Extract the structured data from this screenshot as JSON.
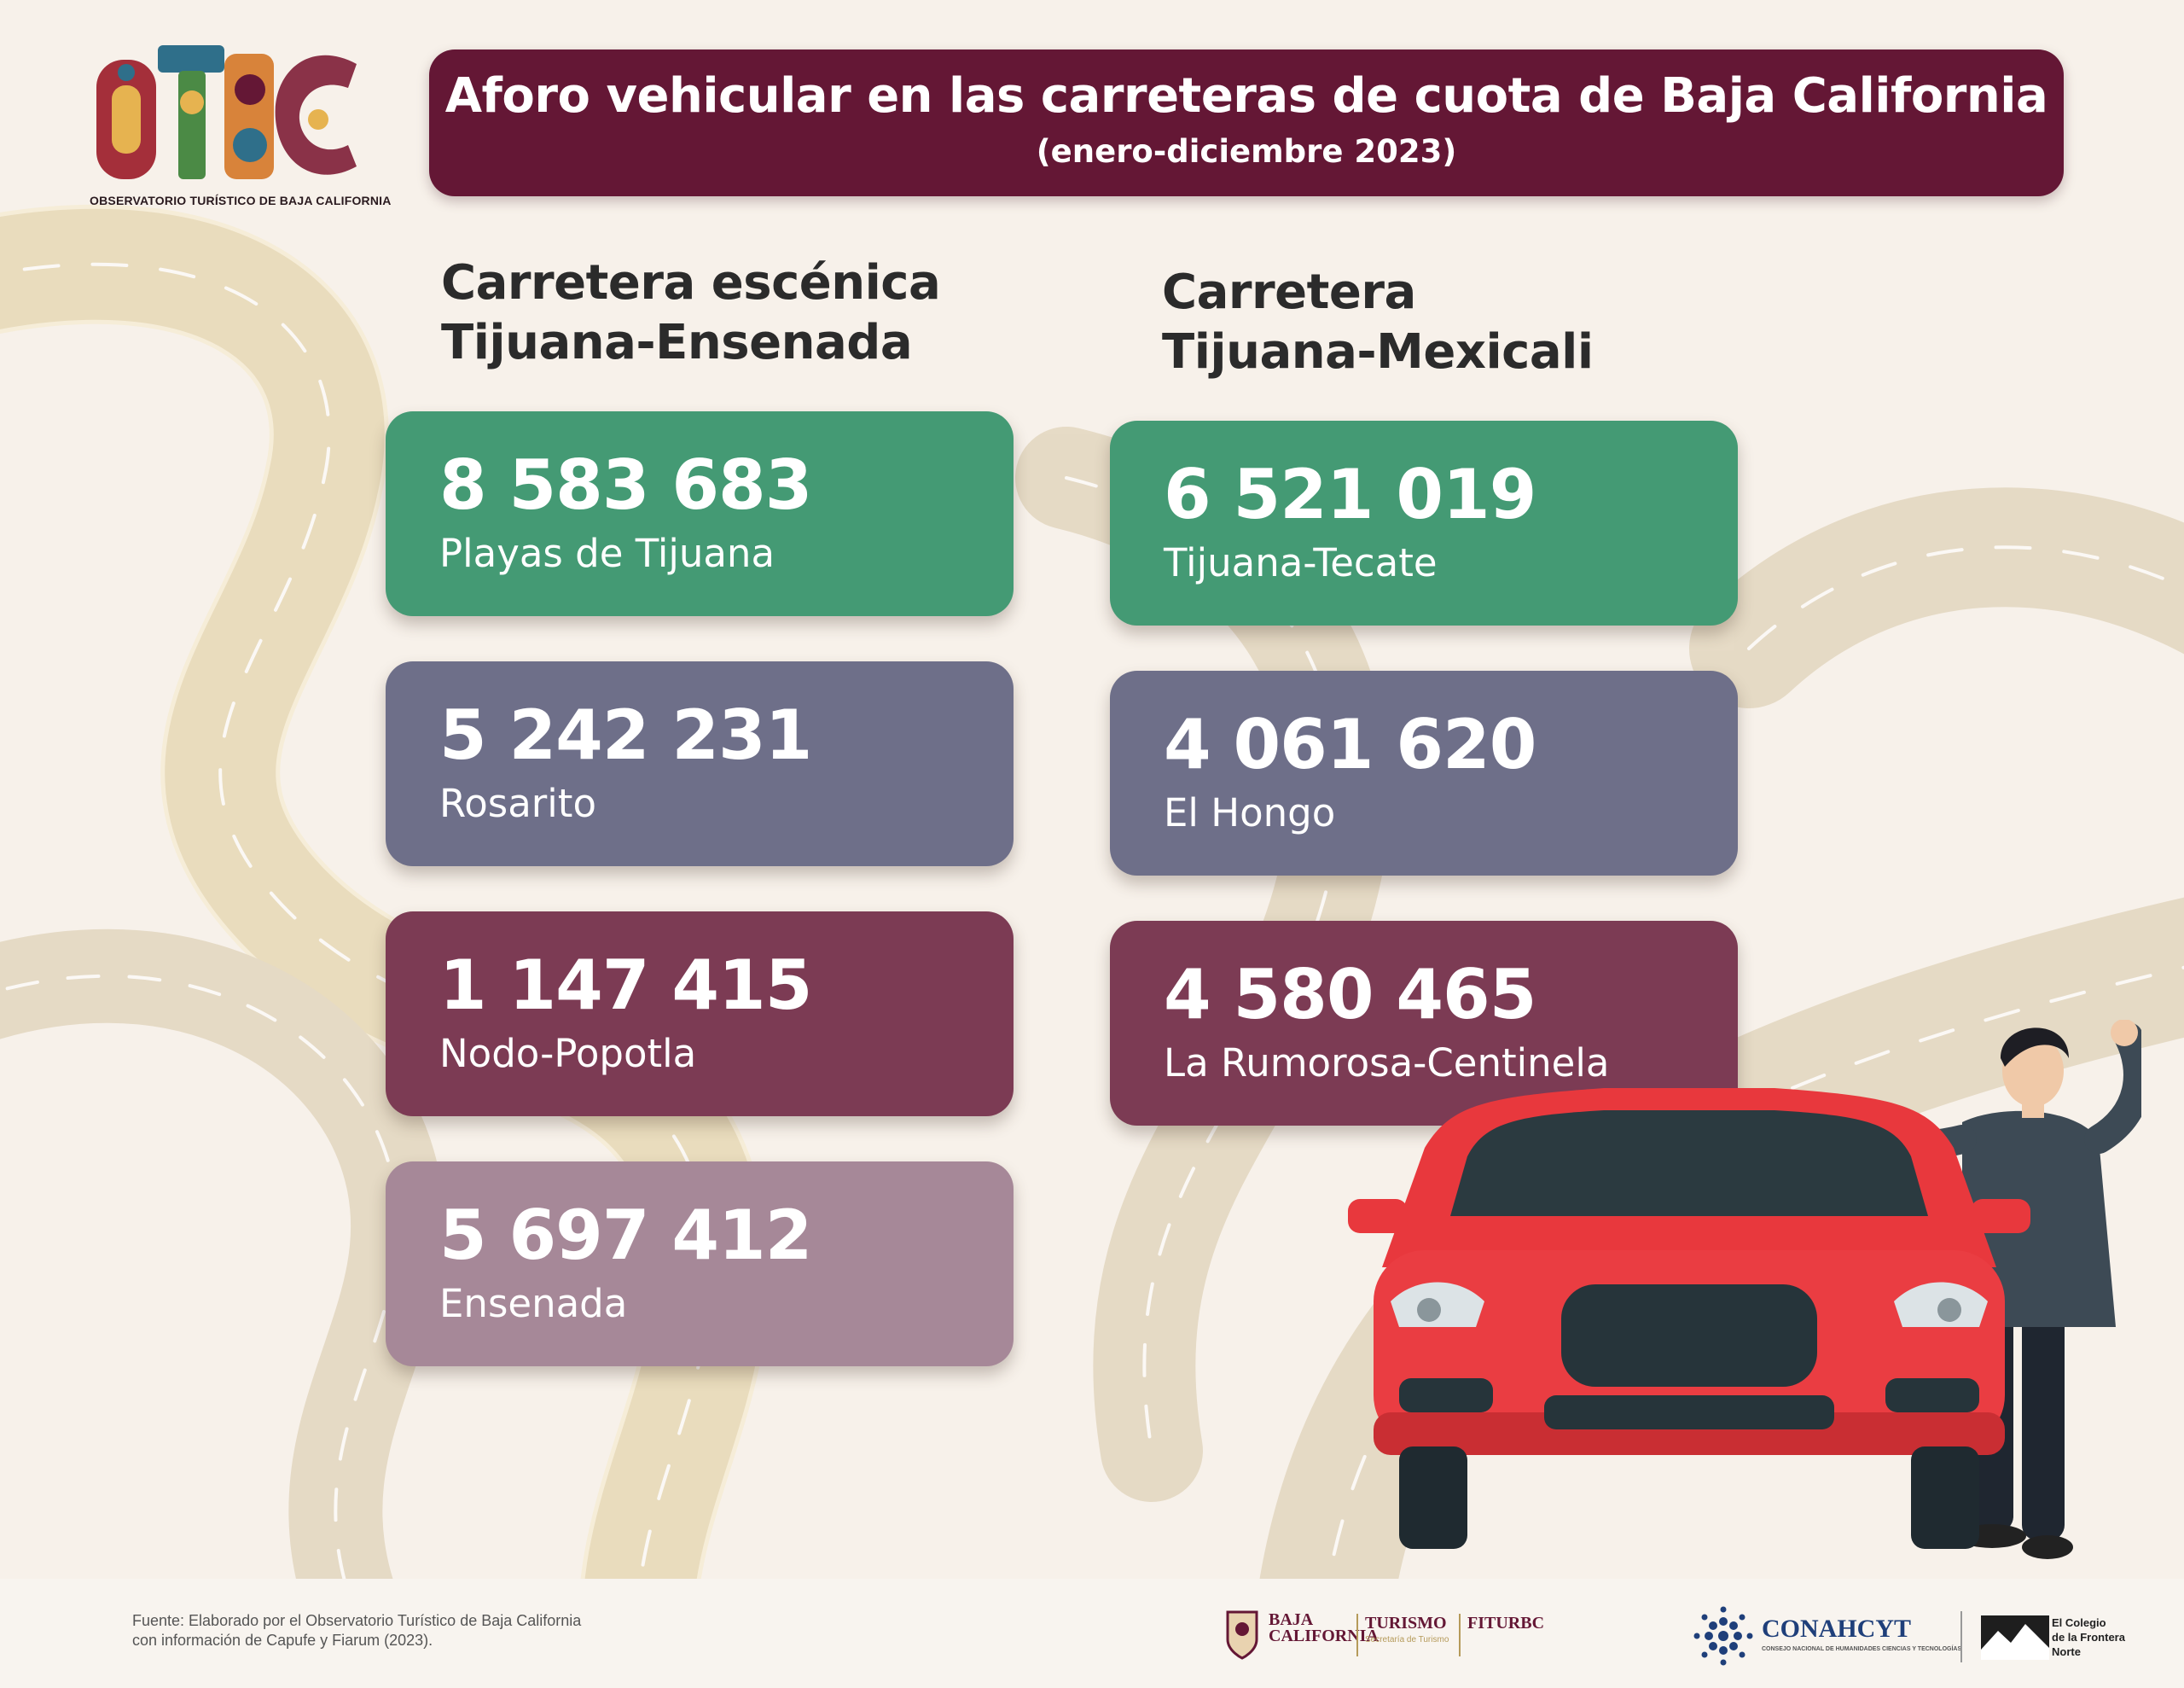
{
  "logo": {
    "caption": "OBSERVATORIO TURÍSTICO DE BAJA CALIFORNIA"
  },
  "banner": {
    "title": "Aforo vehicular en las carreteras de cuota de Baja California",
    "subtitle": "(enero-diciembre 2023)"
  },
  "left_column": {
    "heading_line1": "Carretera escénica",
    "heading_line2": "Tijuana-Ensenada",
    "stations": [
      {
        "value": "8 583 683",
        "name": "Playas de Tijuana",
        "color": "#449a74"
      },
      {
        "value": "5 242 231",
        "name": "Rosarito",
        "color": "#6e6f89"
      },
      {
        "value": "1 147 415",
        "name": "Nodo-Popotla",
        "color": "#7c3b54"
      },
      {
        "value": "5 697 412",
        "name": "Ensenada",
        "color": "#a68898"
      }
    ]
  },
  "right_column": {
    "heading_line1": "Carretera",
    "heading_line2": "Tijuana-Mexicali",
    "stations": [
      {
        "value": "6 521 019",
        "name": "Tijuana-Tecate",
        "color": "#449a74"
      },
      {
        "value": "4 061 620",
        "name": "El Hongo",
        "color": "#6e6f89"
      },
      {
        "value": "4 580 465",
        "name": "La Rumorosa-Centinela",
        "color": "#7c3b54"
      }
    ]
  },
  "footer": {
    "source_line1": "Fuente: Elaborado por el Observatorio Turístico de Baja California",
    "source_line2": "con información de Capufe y Fiarum (2023).",
    "baja_california_line1": "BAJA",
    "baja_california_line2": "CALIFORNIA",
    "turismo": "TURISMO",
    "turismo_sub": "Secretaría de Turismo",
    "fiturbc": "FITURBC",
    "conahcyt": "CONAHCYT",
    "conahcyt_sub": "CONSEJO NACIONAL DE HUMANIDADES CIENCIAS Y TECNOLOGÍAS",
    "colef_line1": "El Colegio",
    "colef_line2": "de la Frontera",
    "colef_line3": "Norte"
  },
  "colors": {
    "banner": "#641735",
    "background": "#f7f1ea",
    "road": "#d6c7a9",
    "road_line": "#f0c94a"
  }
}
